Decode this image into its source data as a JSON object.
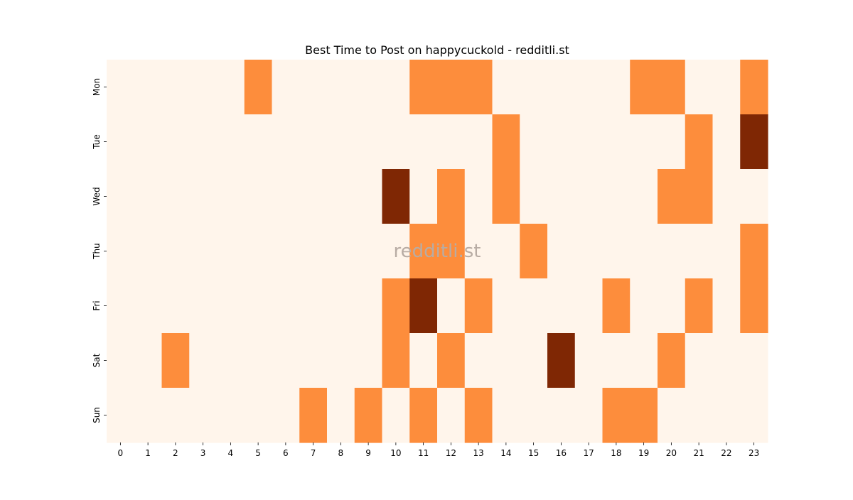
{
  "chart_data": {
    "type": "heatmap",
    "title": "Best Time to Post on happycuckold - redditli.st",
    "watermark": "redditli.st",
    "xlabel": "",
    "ylabel": "",
    "x_labels": [
      "0",
      "1",
      "2",
      "3",
      "4",
      "5",
      "6",
      "7",
      "8",
      "9",
      "10",
      "11",
      "12",
      "13",
      "14",
      "15",
      "16",
      "17",
      "18",
      "19",
      "20",
      "21",
      "22",
      "23"
    ],
    "y_labels": [
      "Mon",
      "Tue",
      "Wed",
      "Thu",
      "Fri",
      "Sat",
      "Sun"
    ],
    "values": [
      [
        0,
        0,
        0,
        0,
        0,
        1,
        0,
        0,
        0,
        0,
        0,
        1,
        1,
        1,
        0,
        0,
        0,
        0,
        0,
        1,
        1,
        0,
        0,
        1
      ],
      [
        0,
        0,
        0,
        0,
        0,
        0,
        0,
        0,
        0,
        0,
        0,
        0,
        0,
        0,
        1,
        0,
        0,
        0,
        0,
        0,
        0,
        1,
        0,
        2
      ],
      [
        0,
        0,
        0,
        0,
        0,
        0,
        0,
        0,
        0,
        0,
        2,
        0,
        1,
        0,
        1,
        0,
        0,
        0,
        0,
        0,
        1,
        1,
        0,
        0
      ],
      [
        0,
        0,
        0,
        0,
        0,
        0,
        0,
        0,
        0,
        0,
        0,
        1,
        1,
        0,
        0,
        1,
        0,
        0,
        0,
        0,
        0,
        0,
        0,
        1
      ],
      [
        0,
        0,
        0,
        0,
        0,
        0,
        0,
        0,
        0,
        0,
        1,
        2,
        0,
        1,
        0,
        0,
        0,
        0,
        1,
        0,
        0,
        1,
        0,
        1
      ],
      [
        0,
        0,
        1,
        0,
        0,
        0,
        0,
        0,
        0,
        0,
        1,
        0,
        1,
        0,
        0,
        0,
        2,
        0,
        0,
        0,
        1,
        0,
        0,
        0
      ],
      [
        0,
        0,
        0,
        0,
        0,
        0,
        0,
        1,
        0,
        1,
        0,
        1,
        0,
        1,
        0,
        0,
        0,
        0,
        1,
        1,
        0,
        0,
        0,
        0
      ]
    ],
    "colors": [
      "#fff5eb",
      "#fd8d3c",
      "#7f2704"
    ],
    "grid": false,
    "legend": "none"
  }
}
